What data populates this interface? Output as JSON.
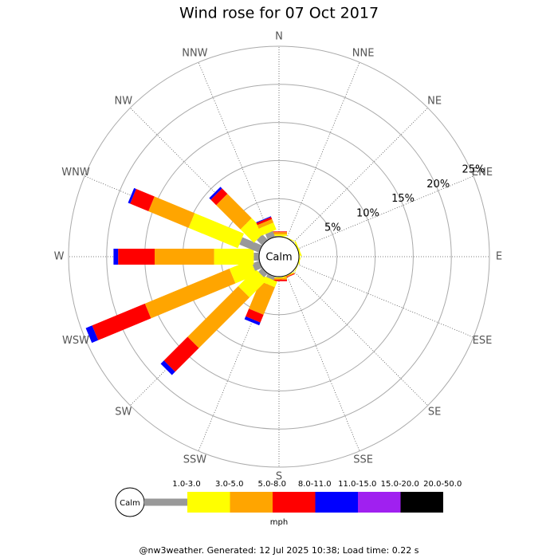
{
  "chart_data": {
    "type": "windrose",
    "title": "Wind rose for 07 Oct 2017",
    "categories": [
      "N",
      "NNE",
      "NE",
      "ENE",
      "E",
      "ESE",
      "SE",
      "SSE",
      "S",
      "SSW",
      "SW",
      "WSW",
      "W",
      "WNW",
      "NW",
      "NNW"
    ],
    "calm_label": "Calm",
    "rlim": [
      0,
      25
    ],
    "rticks": [
      {
        "value": 5,
        "label": "5%"
      },
      {
        "value": 10,
        "label": "10%"
      },
      {
        "value": 15,
        "label": "15%"
      },
      {
        "value": 20,
        "label": "20%"
      },
      {
        "value": 25,
        "label": "25%"
      }
    ],
    "series": [
      {
        "name": "1.0-3.0",
        "color": "#999999",
        "values": [
          0.1,
          0,
          0,
          0,
          0,
          0,
          0,
          0,
          0.1,
          0.5,
          0.7,
          1.0,
          0.7,
          2.8,
          1.0,
          0.8
        ]
      },
      {
        "name": "3.0-5.0",
        "color": "#ffff00",
        "values": [
          0.2,
          0.1,
          0,
          0.2,
          0.1,
          0.1,
          0,
          0.1,
          0.1,
          0.8,
          3.2,
          3.0,
          5.2,
          7.0,
          2.5,
          1.0
        ]
      },
      {
        "name": "5.0-8.0",
        "color": "#ffa500",
        "values": [
          0.3,
          0,
          0,
          0,
          0,
          0,
          0,
          0.1,
          0.2,
          3.9,
          9.4,
          12.0,
          7.8,
          5.7,
          4.5,
          0.5
        ]
      },
      {
        "name": "8.0-11.0",
        "color": "#ff0000",
        "values": [
          0.1,
          0,
          0,
          0,
          0,
          0,
          0,
          0.1,
          0.2,
          1.1,
          4.4,
          7.5,
          4.8,
          2.6,
          1.0,
          0.3
        ]
      },
      {
        "name": "11.0-15.0",
        "color": "#0000ff",
        "values": [
          0,
          0,
          0,
          0,
          0,
          0,
          0,
          0,
          0,
          0.4,
          0.6,
          0.9,
          0.6,
          0.3,
          0.3,
          0.1
        ]
      },
      {
        "name": "15.0-20.0",
        "color": "#a020f0",
        "values": [
          0,
          0,
          0,
          0,
          0,
          0,
          0,
          0,
          0,
          0,
          0,
          0,
          0,
          0,
          0,
          0
        ]
      },
      {
        "name": "20.0-50.0",
        "color": "#000000",
        "values": [
          0,
          0,
          0,
          0,
          0,
          0,
          0,
          0,
          0,
          0,
          0,
          0,
          0,
          0,
          0,
          0
        ]
      }
    ],
    "legend_unit": "mph",
    "footer": "@nw3weather. Generated: 12 Jul 2025 10:38; Load time: 0.22 s"
  }
}
